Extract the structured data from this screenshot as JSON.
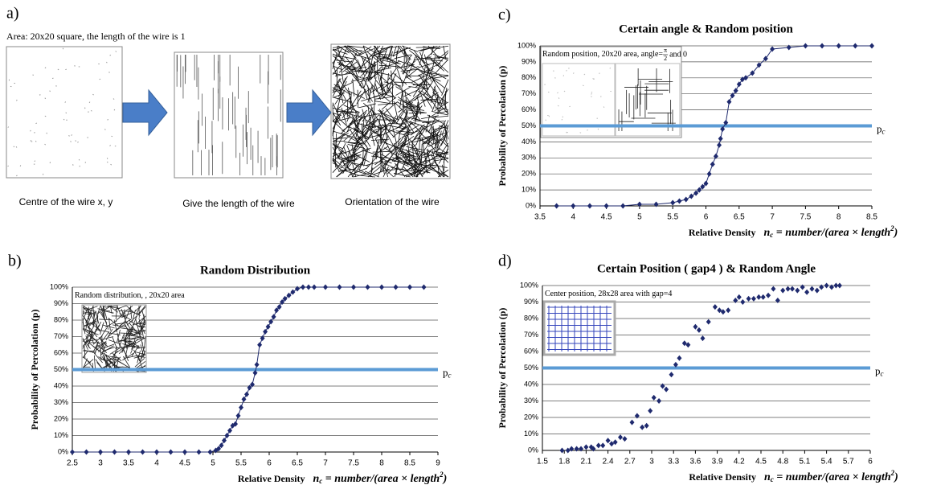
{
  "panel_a": {
    "label": "a)",
    "caption": "Area: 20x20 square, the length of the wire is 1",
    "steps": [
      "Centre of the wire x, y",
      "Give the length of the wire",
      "Orientation of the wire"
    ]
  },
  "chart_data": [
    {
      "type": "line",
      "panel_label": "b)",
      "title": "Random Distribution",
      "inset_text": "Random distribution, , 20x20 area",
      "ylabel": "Probability of Percolation (p)",
      "xlabel": "Relative Density",
      "x_formula": {
        "n": "n",
        "sub": "c",
        "body": " = number/(area × length",
        "sup": "2",
        "end": ")"
      },
      "threshold": 50,
      "threshold_label": {
        "main": "p",
        "sub": "c"
      },
      "color": "#1f2a6e",
      "threshold_color": "#5b9bd5",
      "grid": true,
      "xlim": [
        2.5,
        9
      ],
      "xticks": [
        2.5,
        3,
        3.5,
        4,
        4.5,
        5,
        5.5,
        6,
        6.5,
        7,
        7.5,
        8,
        8.5,
        9
      ],
      "ylim": [
        0,
        100
      ],
      "yticks": [
        {
          "value": 0,
          "label": "0%"
        },
        {
          "value": 10,
          "label": "10%"
        },
        {
          "value": 20,
          "label": "20%"
        },
        {
          "value": 30,
          "label": "30%"
        },
        {
          "value": 40,
          "label": "40%"
        },
        {
          "value": 50,
          "label": "50%"
        },
        {
          "value": 60,
          "label": "60%"
        },
        {
          "value": 70,
          "label": "70%"
        },
        {
          "value": 80,
          "label": "80%"
        },
        {
          "value": 90,
          "label": "90%"
        },
        {
          "value": 100,
          "label": "100%"
        }
      ],
      "x": [
        2.5,
        2.75,
        3,
        3.25,
        3.5,
        3.75,
        4,
        4.25,
        4.5,
        4.75,
        4.95,
        5.05,
        5.1,
        5.15,
        5.2,
        5.25,
        5.3,
        5.35,
        5.4,
        5.45,
        5.5,
        5.55,
        5.6,
        5.65,
        5.7,
        5.75,
        5.78,
        5.83,
        5.88,
        5.93,
        5.98,
        6.03,
        6.08,
        6.13,
        6.18,
        6.23,
        6.28,
        6.35,
        6.42,
        6.5,
        6.6,
        6.7,
        6.8,
        7,
        7.25,
        7.5,
        7.75,
        8,
        8.25,
        8.5,
        8.75
      ],
      "values": [
        0,
        0,
        0,
        0,
        0,
        0,
        0,
        0,
        0,
        0,
        0,
        1,
        2,
        4,
        7,
        10,
        13,
        16,
        17,
        22,
        27,
        32,
        35,
        39,
        41,
        48,
        53,
        65,
        69,
        73,
        76,
        79,
        82,
        86,
        88,
        91,
        93,
        95,
        97,
        99,
        100,
        100,
        100,
        100,
        100,
        100,
        100,
        100,
        100,
        100,
        100
      ]
    },
    {
      "type": "line",
      "panel_label": "c)",
      "title": "Certain angle & Random position",
      "inset_text": "Random position, 20x20 area, angle=",
      "inset_fraction": {
        "num": "π",
        "den": "2"
      },
      "inset_text_end": " and 0",
      "ylabel": "Probability of Percolation (p)",
      "xlabel": "Relative Density",
      "x_formula": {
        "n": "n",
        "sub": "c",
        "body": " = number/(area × length",
        "sup": "2",
        "end": ")"
      },
      "threshold": 50,
      "threshold_label": {
        "main": "p",
        "sub": "c"
      },
      "color": "#1f2a6e",
      "threshold_color": "#5b9bd5",
      "grid": true,
      "xlim": [
        3.5,
        8.5
      ],
      "xticks": [
        3.5,
        4,
        4.5,
        5,
        5.5,
        6,
        6.5,
        7,
        7.5,
        8,
        8.5
      ],
      "ylim": [
        0,
        100
      ],
      "yticks": [
        {
          "value": 0,
          "label": "0%"
        },
        {
          "value": 10,
          "label": "10%"
        },
        {
          "value": 20,
          "label": "20%"
        },
        {
          "value": 30,
          "label": "30%"
        },
        {
          "value": 40,
          "label": "40%"
        },
        {
          "value": 50,
          "label": "50%"
        },
        {
          "value": 60,
          "label": "60%"
        },
        {
          "value": 70,
          "label": "70%"
        },
        {
          "value": 80,
          "label": "80%"
        },
        {
          "value": 90,
          "label": "90%"
        },
        {
          "value": 100,
          "label": "100%"
        }
      ],
      "x": [
        3.75,
        4,
        4.25,
        4.5,
        4.75,
        5,
        5.25,
        5.5,
        5.6,
        5.7,
        5.78,
        5.85,
        5.9,
        5.95,
        6,
        6.05,
        6.1,
        6.15,
        6.2,
        6.22,
        6.25,
        6.3,
        6.35,
        6.4,
        6.45,
        6.5,
        6.55,
        6.6,
        6.7,
        6.8,
        6.9,
        7,
        7.25,
        7.5,
        7.75,
        8,
        8.25,
        8.5
      ],
      "values": [
        0,
        0,
        0,
        0,
        0,
        1,
        1,
        2,
        3,
        4,
        6,
        8,
        10,
        12,
        14,
        20,
        26,
        31,
        38,
        42,
        48,
        52,
        65,
        69,
        72,
        76,
        79,
        80,
        83,
        88,
        92,
        98,
        99,
        100,
        100,
        100,
        100,
        100
      ]
    },
    {
      "type": "scatter",
      "panel_label": "d)",
      "title": "Certain Position ( gap4 ) & Random Angle",
      "inset_text": "Center position, 28x28 area with gap=4",
      "ylabel": "Probability of Percolation (p)",
      "xlabel": "Relative Density",
      "x_formula": {
        "n": "n",
        "sub": "c",
        "body": " = number/(area × length",
        "sup": "2",
        "end": ")"
      },
      "threshold": 50,
      "threshold_label": {
        "main": "p",
        "sub": "c"
      },
      "color": "#1f2a6e",
      "threshold_color": "#5b9bd5",
      "grid": true,
      "xlim": [
        1.5,
        6
      ],
      "xticks": [
        1.5,
        1.8,
        2.1,
        2.4,
        2.7,
        3,
        3.3,
        3.6,
        3.9,
        4.2,
        4.5,
        4.8,
        5.1,
        5.4,
        5.7,
        6
      ],
      "ylim": [
        0,
        100
      ],
      "yticks": [
        {
          "value": 0,
          "label": "0%"
        },
        {
          "value": 10,
          "label": "10%"
        },
        {
          "value": 20,
          "label": "20%"
        },
        {
          "value": 30,
          "label": "30%"
        },
        {
          "value": 40,
          "label": "40%"
        },
        {
          "value": 50,
          "label": "50%"
        },
        {
          "value": 60,
          "label": "60%"
        },
        {
          "value": 70,
          "label": "70%"
        },
        {
          "value": 80,
          "label": "80%"
        },
        {
          "value": 90,
          "label": "90%"
        },
        {
          "value": 100,
          "label": "100%"
        }
      ],
      "x": [
        1.77,
        1.85,
        1.9,
        1.97,
        2.03,
        2.1,
        2.17,
        2.2,
        2.27,
        2.33,
        2.4,
        2.45,
        2.5,
        2.57,
        2.63,
        2.73,
        2.8,
        2.87,
        2.93,
        2.98,
        3.03,
        3.1,
        3.15,
        3.2,
        3.27,
        3.33,
        3.38,
        3.45,
        3.5,
        3.6,
        3.65,
        3.7,
        3.78,
        3.87,
        3.93,
        3.98,
        4.05,
        4.15,
        4.2,
        4.25,
        4.33,
        4.4,
        4.47,
        4.53,
        4.6,
        4.67,
        4.73,
        4.8,
        4.87,
        4.93,
        5,
        5.07,
        5.13,
        5.2,
        5.27,
        5.33,
        5.4,
        5.47,
        5.53,
        5.58
      ],
      "values": [
        0,
        0,
        1,
        1,
        1,
        2,
        2,
        1,
        3,
        3,
        6,
        4,
        5,
        8,
        7,
        17,
        21,
        14,
        15,
        24,
        32,
        30,
        39,
        37,
        46,
        52,
        56,
        65,
        64,
        75,
        73,
        68,
        78,
        87,
        85,
        84,
        85,
        91,
        93,
        90,
        92,
        92,
        93,
        93,
        94,
        98,
        91,
        97,
        98,
        98,
        97,
        99,
        96,
        98,
        97,
        99,
        100,
        99,
        100,
        100
      ]
    }
  ]
}
